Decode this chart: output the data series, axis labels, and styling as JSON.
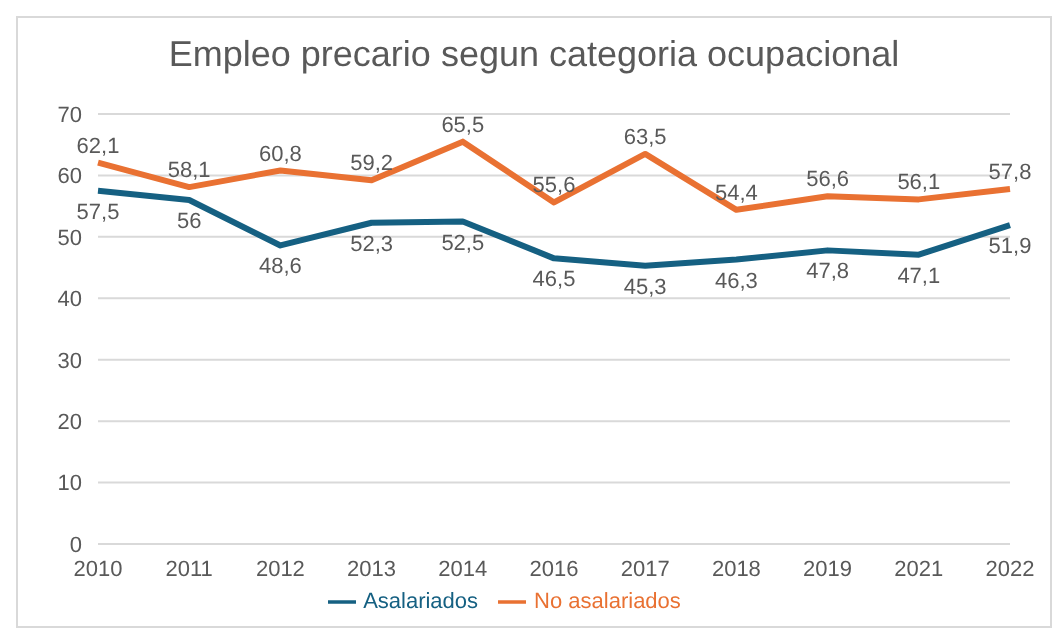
{
  "chart_data": {
    "type": "line",
    "title": "Empleo precario segun categoria ocupacional",
    "categories": [
      "2010",
      "2011",
      "2012",
      "2013",
      "2014",
      "2016",
      "2017",
      "2018",
      "2019",
      "2021",
      "2022"
    ],
    "series": [
      {
        "name": "Asalariados",
        "color": "#156082",
        "values": [
          57.5,
          56,
          48.6,
          52.3,
          52.5,
          46.5,
          45.3,
          46.3,
          47.8,
          47.1,
          51.9
        ],
        "value_labels": [
          "57,5",
          "56",
          "48,6",
          "52,3",
          "52,5",
          "46,5",
          "45,3",
          "46,3",
          "47,8",
          "47,1",
          "51,9"
        ]
      },
      {
        "name": "No asalariados",
        "color": "#e97132",
        "values": [
          62.1,
          58.1,
          60.8,
          59.2,
          65.5,
          55.6,
          63.5,
          54.4,
          56.6,
          56.1,
          57.8
        ],
        "value_labels": [
          "62,1",
          "58,1",
          "60,8",
          "59,2",
          "65,5",
          "55,6",
          "63,5",
          "54,4",
          "56,6",
          "56,1",
          "57,8"
        ]
      }
    ],
    "ylim": [
      0,
      70
    ],
    "yticks": [
      0,
      10,
      20,
      30,
      40,
      50,
      60,
      70
    ],
    "grid": "y",
    "legend": "bottom",
    "marker": "none",
    "line_style": "solid"
  }
}
